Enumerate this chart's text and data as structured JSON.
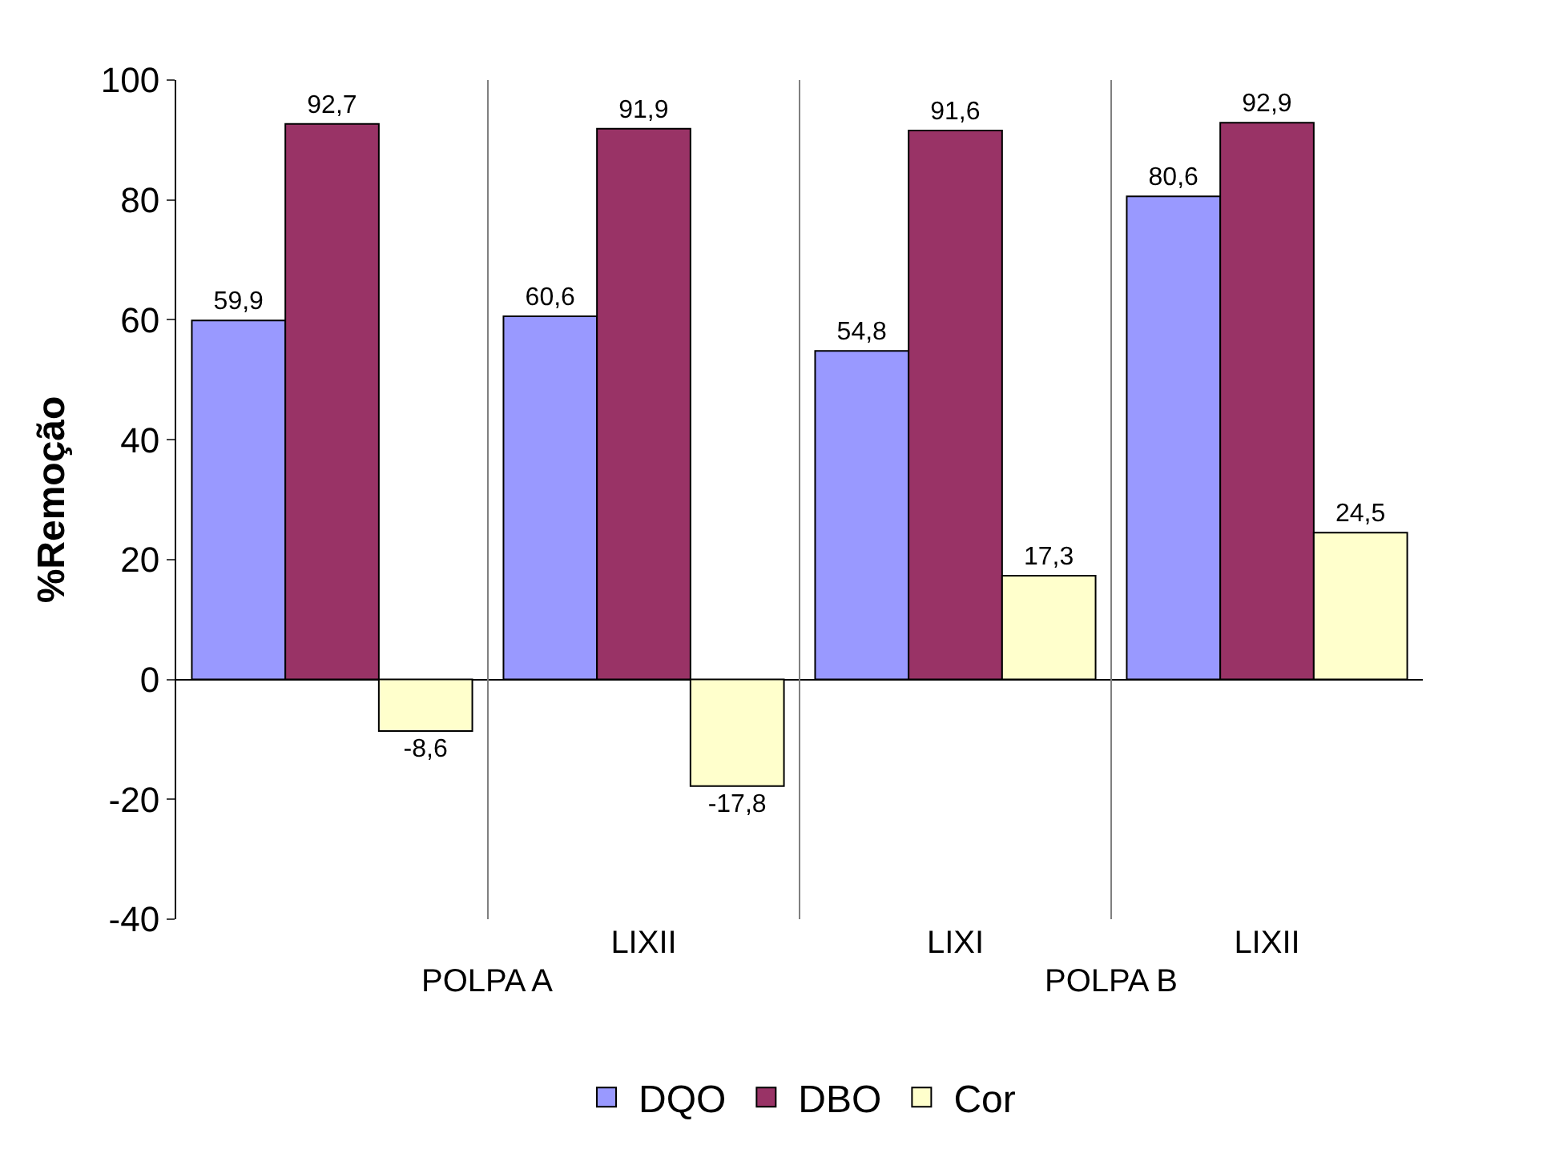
{
  "chart_data": {
    "type": "bar",
    "ylabel": "%Remoção",
    "categories": [
      null,
      "LIXII",
      "LIXI",
      "LIXII"
    ],
    "series": [
      {
        "name": "DQO",
        "color": "#9999ff",
        "values": [
          59.9,
          60.6,
          54.8,
          80.6
        ],
        "value_labels": [
          "59,9",
          "60,6",
          "54,8",
          "80,6"
        ]
      },
      {
        "name": "DBO",
        "color": "#993366",
        "values": [
          92.7,
          91.9,
          91.6,
          92.9
        ],
        "value_labels": [
          "92,7",
          "91,9",
          "91,6",
          "92,9"
        ]
      },
      {
        "name": "Cor",
        "color": "#ffffcc",
        "values": [
          -8.6,
          -17.8,
          17.3,
          24.5
        ],
        "value_labels": [
          "-8,6",
          "-17,8",
          "17,3",
          "24,5"
        ]
      }
    ],
    "annotations": [
      "POLPA A",
      "POLPA B"
    ],
    "ylim": [
      -40,
      100
    ],
    "yticks": [
      -40,
      -20,
      0,
      20,
      40,
      60,
      80,
      100
    ],
    "grid": "x",
    "legend": "bottom"
  }
}
